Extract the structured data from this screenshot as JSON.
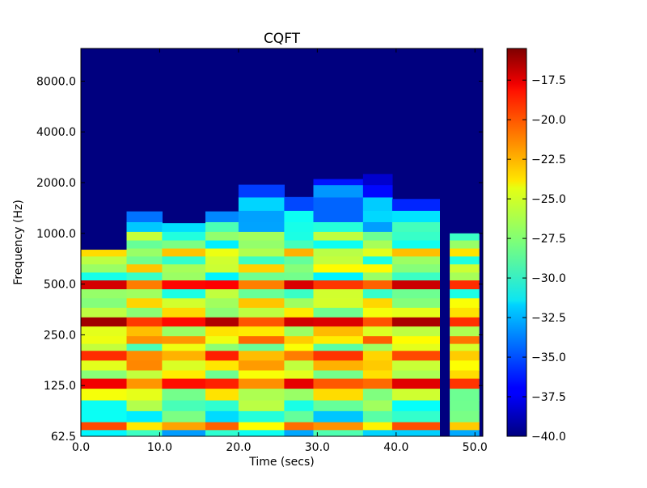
{
  "chart_data": {
    "type": "heatmap",
    "title": "CQFT",
    "xlabel": "Time (secs)",
    "ylabel": "Frequency (Hz)",
    "xlim": [
      0,
      51
    ],
    "ylim_hz": [
      62.5,
      12500
    ],
    "y_scale": "log2",
    "x_ticks": [
      0,
      10,
      20,
      30,
      40,
      50
    ],
    "x_tick_labels": [
      "0.0",
      "10.0",
      "20.0",
      "30.0",
      "40.0",
      "50.0"
    ],
    "y_ticks": [
      62.5,
      125,
      250,
      500,
      1000,
      2000,
      4000,
      8000
    ],
    "y_tick_labels": [
      "62.5",
      "125.0",
      "250.0",
      "500.0",
      "1000.0",
      "2000.0",
      "4000.0",
      "8000.0"
    ],
    "grid": false,
    "colormap": "jet",
    "colorbar": {
      "range": [
        -40.0,
        -15.5
      ],
      "ticks": [
        -17.5,
        -20.0,
        -22.5,
        -25.0,
        -27.5,
        -30.0,
        -32.5,
        -35.0,
        -37.5,
        -40.0
      ],
      "tick_labels": [
        "−17.5",
        "−20.0",
        "−22.5",
        "−25.0",
        "−27.5",
        "−30.0",
        "−32.5",
        "−35.0",
        "−37.5",
        "−40.0"
      ]
    },
    "background_db": -40,
    "segments": [
      {
        "start": 0.0,
        "end": 5.8,
        "max_hz": 800
      },
      {
        "start": 5.8,
        "end": 10.3,
        "max_hz": 1350
      },
      {
        "start": 10.3,
        "end": 15.8,
        "max_hz": 1150
      },
      {
        "start": 15.8,
        "end": 20.0,
        "max_hz": 1350
      },
      {
        "start": 20.0,
        "end": 25.8,
        "max_hz": 2000
      },
      {
        "start": 25.8,
        "end": 29.5,
        "max_hz": 1650
      },
      {
        "start": 29.5,
        "end": 35.8,
        "max_hz": 2100
      },
      {
        "start": 35.8,
        "end": 39.5,
        "max_hz": 2250
      },
      {
        "start": 39.5,
        "end": 45.5,
        "max_hz": 1600
      },
      {
        "start": 45.5,
        "end": 46.8,
        "max_hz": 62.5
      },
      {
        "start": 46.8,
        "end": 50.5,
        "max_hz": 1000
      },
      {
        "start": 50.5,
        "end": 51.0,
        "max_hz": 62.5
      }
    ],
    "energy_bands": [
      {
        "hz": 66,
        "db": -31.0
      },
      {
        "hz": 71,
        "db": -22.5
      },
      {
        "hz": 82,
        "db": -30.0
      },
      {
        "hz": 96,
        "db": -28.5
      },
      {
        "hz": 110,
        "db": -26.0
      },
      {
        "hz": 132,
        "db": -20.0
      },
      {
        "hz": 145,
        "db": -26.0
      },
      {
        "hz": 165,
        "db": -24.0
      },
      {
        "hz": 190,
        "db": -21.5
      },
      {
        "hz": 215,
        "db": -27.0
      },
      {
        "hz": 230,
        "db": -23.0
      },
      {
        "hz": 265,
        "db": -25.0
      },
      {
        "hz": 300,
        "db": -18.5
      },
      {
        "hz": 340,
        "db": -26.0
      },
      {
        "hz": 390,
        "db": -25.5
      },
      {
        "hz": 440,
        "db": -28.0
      },
      {
        "hz": 500,
        "db": -19.5
      },
      {
        "hz": 560,
        "db": -29.0
      },
      {
        "hz": 620,
        "db": -25.5
      },
      {
        "hz": 700,
        "db": -28.0
      },
      {
        "hz": 770,
        "db": -25.0
      },
      {
        "hz": 870,
        "db": -29.0
      },
      {
        "hz": 960,
        "db": -28.0
      },
      {
        "hz": 1100,
        "db": -31.0
      },
      {
        "hz": 1250,
        "db": -32.5
      },
      {
        "hz": 1500,
        "db": -34.0
      },
      {
        "hz": 1800,
        "db": -35.5
      },
      {
        "hz": 2100,
        "db": -36.5
      }
    ]
  }
}
